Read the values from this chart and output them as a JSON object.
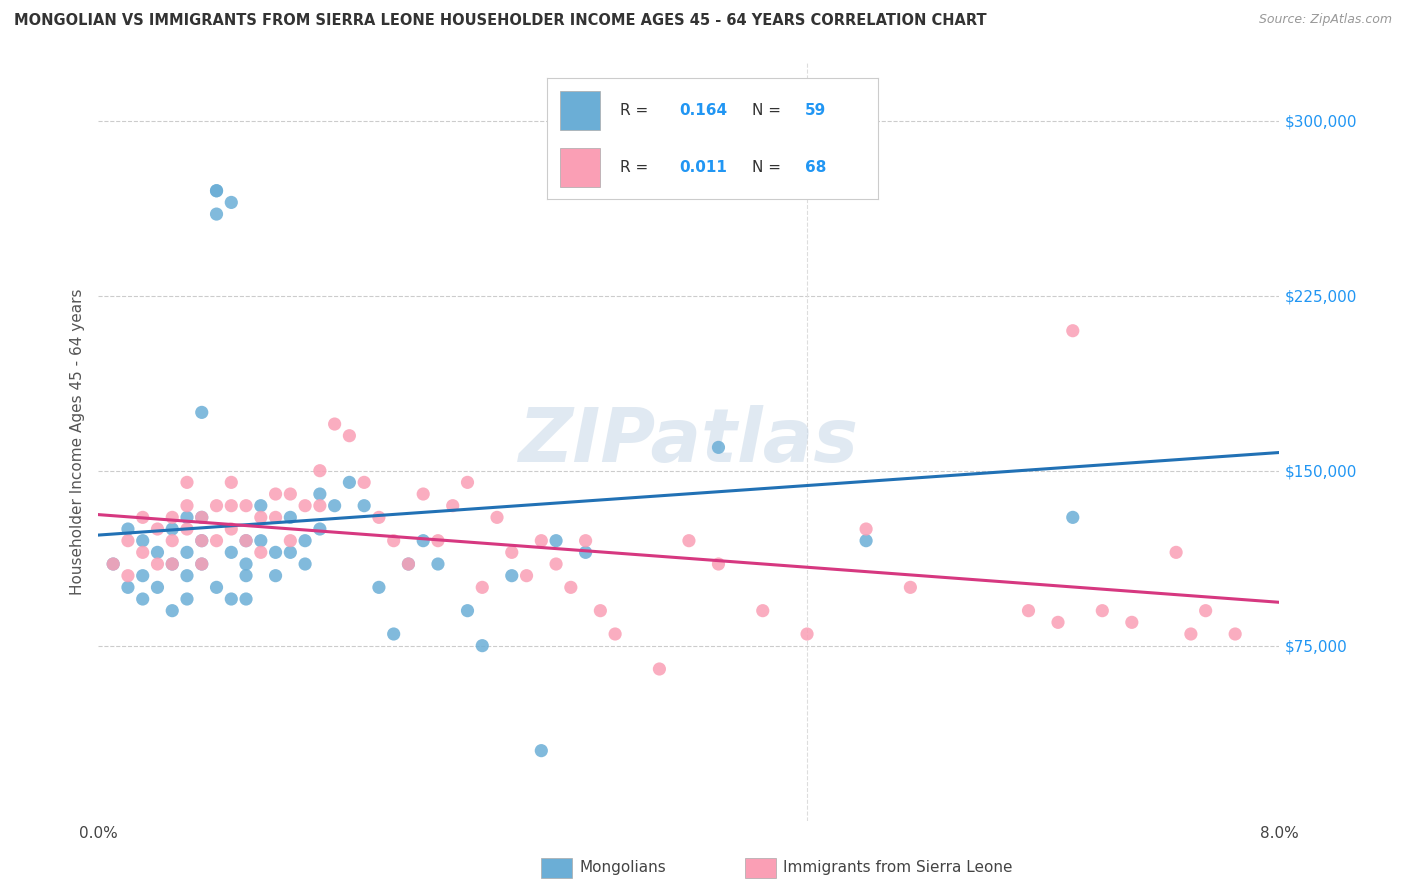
{
  "title": "MONGOLIAN VS IMMIGRANTS FROM SIERRA LEONE HOUSEHOLDER INCOME AGES 45 - 64 YEARS CORRELATION CHART",
  "source": "Source: ZipAtlas.com",
  "ylabel": "Householder Income Ages 45 - 64 years",
  "xlim": [
    0.0,
    0.08
  ],
  "ylim": [
    0,
    325000
  ],
  "ytick_positions": [
    75000,
    150000,
    225000,
    300000
  ],
  "ytick_labels": [
    "$75,000",
    "$150,000",
    "$225,000",
    "$300,000"
  ],
  "mongolian_color": "#6baed6",
  "sierra_leone_color": "#fa9fb5",
  "line_color_mongolian": "#2171b5",
  "line_color_sierra": "#d63880",
  "watermark": "ZIPatlas",
  "legend_mongolians": "Mongolians",
  "legend_sierra": "Immigrants from Sierra Leone",
  "mongolian_x": [
    0.001,
    0.002,
    0.002,
    0.003,
    0.003,
    0.003,
    0.004,
    0.004,
    0.005,
    0.005,
    0.005,
    0.006,
    0.006,
    0.006,
    0.006,
    0.007,
    0.007,
    0.007,
    0.008,
    0.008,
    0.008,
    0.009,
    0.009,
    0.01,
    0.01,
    0.01,
    0.011,
    0.011,
    0.012,
    0.012,
    0.013,
    0.013,
    0.014,
    0.014,
    0.015,
    0.015,
    0.016,
    0.017,
    0.018,
    0.019,
    0.02,
    0.021,
    0.022,
    0.023,
    0.025,
    0.026,
    0.028,
    0.03,
    0.031,
    0.033,
    0.038,
    0.042,
    0.043,
    0.052,
    0.066,
    0.007,
    0.008,
    0.009,
    0.01
  ],
  "mongolian_y": [
    110000,
    125000,
    100000,
    120000,
    105000,
    95000,
    115000,
    100000,
    125000,
    110000,
    90000,
    130000,
    115000,
    105000,
    95000,
    175000,
    130000,
    120000,
    270000,
    270000,
    260000,
    265000,
    115000,
    120000,
    110000,
    105000,
    135000,
    120000,
    115000,
    105000,
    130000,
    115000,
    120000,
    110000,
    140000,
    125000,
    135000,
    145000,
    135000,
    100000,
    80000,
    110000,
    120000,
    110000,
    90000,
    75000,
    105000,
    30000,
    120000,
    115000,
    270000,
    160000,
    270000,
    120000,
    130000,
    110000,
    100000,
    95000,
    95000
  ],
  "sierra_leone_x": [
    0.001,
    0.002,
    0.002,
    0.003,
    0.003,
    0.004,
    0.004,
    0.005,
    0.005,
    0.005,
    0.006,
    0.006,
    0.006,
    0.007,
    0.007,
    0.007,
    0.008,
    0.008,
    0.009,
    0.009,
    0.009,
    0.01,
    0.01,
    0.011,
    0.011,
    0.012,
    0.012,
    0.013,
    0.013,
    0.014,
    0.015,
    0.015,
    0.016,
    0.017,
    0.018,
    0.019,
    0.02,
    0.021,
    0.022,
    0.023,
    0.024,
    0.025,
    0.026,
    0.027,
    0.028,
    0.029,
    0.03,
    0.031,
    0.032,
    0.033,
    0.034,
    0.035,
    0.038,
    0.04,
    0.042,
    0.045,
    0.048,
    0.052,
    0.055,
    0.063,
    0.065,
    0.066,
    0.068,
    0.07,
    0.073,
    0.074,
    0.075,
    0.077
  ],
  "sierra_leone_y": [
    110000,
    120000,
    105000,
    130000,
    115000,
    125000,
    110000,
    130000,
    120000,
    110000,
    145000,
    135000,
    125000,
    130000,
    120000,
    110000,
    135000,
    120000,
    145000,
    135000,
    125000,
    135000,
    120000,
    130000,
    115000,
    140000,
    130000,
    140000,
    120000,
    135000,
    150000,
    135000,
    170000,
    165000,
    145000,
    130000,
    120000,
    110000,
    140000,
    120000,
    135000,
    145000,
    100000,
    130000,
    115000,
    105000,
    120000,
    110000,
    100000,
    120000,
    90000,
    80000,
    65000,
    120000,
    110000,
    90000,
    80000,
    125000,
    100000,
    90000,
    85000,
    210000,
    90000,
    85000,
    115000,
    80000,
    90000,
    80000
  ]
}
